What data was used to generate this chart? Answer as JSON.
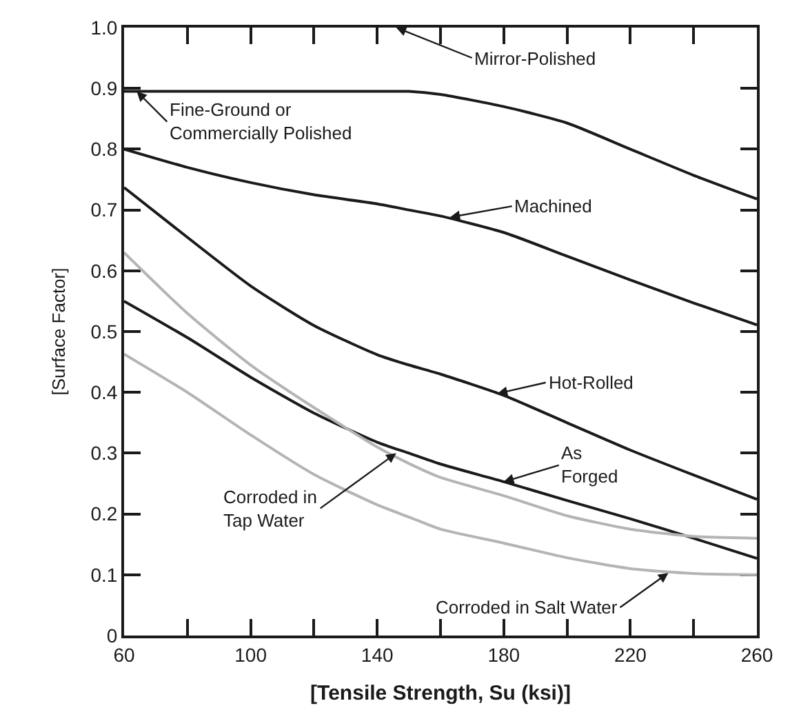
{
  "chart_data": {
    "type": "line",
    "xlabel": "[Tensile Strength, Su (ksi)]",
    "ylabel": "[Surface Factor]",
    "x": [
      60,
      80,
      100,
      120,
      140,
      150,
      160,
      180,
      200,
      220,
      240,
      260
    ],
    "series": [
      {
        "color": "#1a1a1a",
        "values": [
          0.895,
          0.895,
          0.895,
          0.895,
          0.895,
          0.895,
          0.89,
          0.87,
          0.843,
          0.8,
          0.757,
          0.718
        ]
      },
      {
        "color": "#1a1a1a",
        "values": [
          0.8,
          0.77,
          0.745,
          0.725,
          0.71,
          0.7,
          0.69,
          0.663,
          0.624,
          0.585,
          0.547,
          0.511
        ]
      },
      {
        "color": "#1a1a1a",
        "values": [
          0.737,
          0.655,
          0.575,
          0.51,
          0.462,
          0.445,
          0.43,
          0.395,
          0.35,
          0.305,
          0.264,
          0.224
        ]
      },
      {
        "color": "#1a1a1a",
        "values": [
          0.55,
          0.49,
          0.425,
          0.366,
          0.318,
          0.3,
          0.282,
          0.253,
          0.222,
          0.192,
          0.16,
          0.127
        ]
      },
      {
        "color": "#b4b4b4",
        "values": [
          0.63,
          0.53,
          0.445,
          0.375,
          0.31,
          0.283,
          0.26,
          0.23,
          0.197,
          0.175,
          0.163,
          0.16
        ]
      },
      {
        "color": "#b4b4b4",
        "values": [
          0.463,
          0.4,
          0.33,
          0.265,
          0.215,
          0.195,
          0.175,
          0.152,
          0.128,
          0.11,
          0.102,
          0.1
        ]
      }
    ],
    "xlim": [
      60,
      260
    ],
    "xticks": [
      60,
      {
        "value": 80,
        "label": null
      },
      100,
      {
        "value": 120,
        "label": null
      },
      140,
      {
        "value": 160,
        "label": null
      },
      180,
      {
        "value": 200,
        "label": null
      },
      220,
      {
        "value": 240,
        "label": null
      },
      260
    ],
    "ylim": [
      0,
      1
    ],
    "yticks": [
      0,
      0.1,
      0.2,
      0.3,
      0.4,
      0.5,
      0.6,
      0.7,
      0.8,
      0.9,
      {
        "value": 1,
        "label": "1.0"
      }
    ],
    "marker": "none",
    "line_style": "solid",
    "annotations": [
      "Mirror-Polished",
      {
        "text": "Fine-Ground or\nCommercially Polished",
        "x": 64,
        "y": 0.895
      },
      {
        "text": "Machined",
        "x": 163,
        "y": 0.688
      },
      {
        "text": "Hot-Rolled",
        "x": 178,
        "y": 0.398
      },
      {
        "text": "As\nForged",
        "x": 180,
        "y": 0.253
      },
      {
        "text": "Corroded in\nTap Water",
        "x": 146,
        "y": 0.3
      },
      {
        "text": "Corroded in Salt Water",
        "x": 232,
        "y": 0.103
      }
    ]
  }
}
